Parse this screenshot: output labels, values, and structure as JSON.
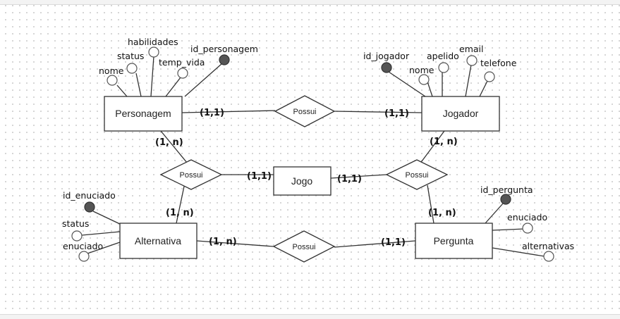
{
  "entities": {
    "personagem": "Personagem",
    "jogador": "Jogador",
    "jogo": "Jogo",
    "alternativa": "Alternativa",
    "pergunta": "Pergunta"
  },
  "relationships": {
    "personagem_jogador": "Possui",
    "personagem_jogo": "Possui",
    "jogador_jogo": "Possui",
    "alternativa_pergunta": "Possui"
  },
  "cardinalities": {
    "personagem_side_top": "(1,1)",
    "jogador_side_top": "(1,1)",
    "personagem_side_left": "(1, n)",
    "jogo_side_left": "(1,1)",
    "jogo_side_right": "(1,1)",
    "jogador_side_right": "(1, n)",
    "alternativa_side_left": "(1, n)",
    "pergunta_side_right": "(1, n)",
    "alternativa_side_bottom": "(1, n)",
    "pergunta_side_bottom": "(1,1)"
  },
  "attributes": {
    "personagem": {
      "nome": "nome",
      "status": "status",
      "habilidades": "habilidades",
      "temp_vida": "temp_vida",
      "id_personagem": "id_personagem"
    },
    "jogador": {
      "id_jogador": "id_jogador",
      "nome": "nome",
      "apelido": "apelido",
      "email": "email",
      "telefone": "telefone"
    },
    "alternativa": {
      "id_enuciado": "id_enuciado",
      "status": "status",
      "enuciado": "enuciado"
    },
    "pergunta": {
      "id_pergunta": "id_pergunta",
      "enuciado": "enuciado",
      "alternativas": "alternativas"
    }
  },
  "colors": {
    "stroke": "#333333",
    "key_attribute_fill": "#555555",
    "attribute_fill": "#ffffff",
    "grid_dot": "#c9c9c9"
  }
}
